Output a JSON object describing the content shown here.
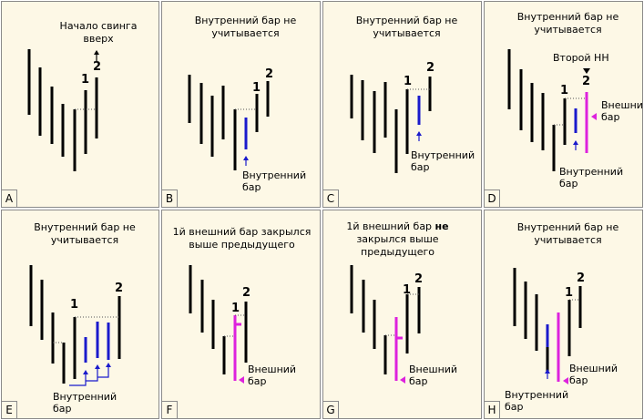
{
  "panels": [
    {
      "id": "A",
      "title": "Начало свинга вверх",
      "num1": "1",
      "num2": "2",
      "letter": "A"
    },
    {
      "id": "B",
      "title": "Внутренний бар не учитывается",
      "num1": "1",
      "num2": "2",
      "label_inside": "Внутренний бар",
      "letter": "B"
    },
    {
      "id": "C",
      "title": "Внутренний бар не учитывается",
      "num1": "1",
      "num2": "2",
      "label_inside": "Внутренний бар",
      "letter": "C"
    },
    {
      "id": "D",
      "title": "Внутренний бар не учитывается",
      "second_hh": "Второй НН",
      "num1": "1",
      "num2": "2",
      "label_outside": "Внешний бар",
      "label_inside": "Внутренний бар",
      "letter": "D"
    },
    {
      "id": "E",
      "title": "Внутренний бар не учитывается",
      "num1": "1",
      "num2": "2",
      "label_inside": "Внутренний бар",
      "letter": "E"
    },
    {
      "id": "F",
      "title": "1й внешний бар закрылся выше предыдущего",
      "num1": "1",
      "num2": "2",
      "label_outside": "Внешний бар",
      "letter": "F"
    },
    {
      "id": "G",
      "title_pre": "1й внешний бар",
      "title_bold": "не",
      "title_post": "закрылся выше предыдущего",
      "num1": "1",
      "num2": "2",
      "label_outside": "Внешний бар",
      "letter": "G"
    },
    {
      "id": "H",
      "title": "Внутренний бар не учитывается",
      "num1": "1",
      "num2": "2",
      "label_outside": "Внешний бар",
      "label_inside": "Внутренний бар",
      "letter": "H"
    }
  ],
  "colors": {
    "bar": "#000000",
    "inside_bar": "#1a1acc",
    "outside_bar": "#dd22dd",
    "panel_bg": "#fdf8e6",
    "border": "#8a8a8a"
  }
}
